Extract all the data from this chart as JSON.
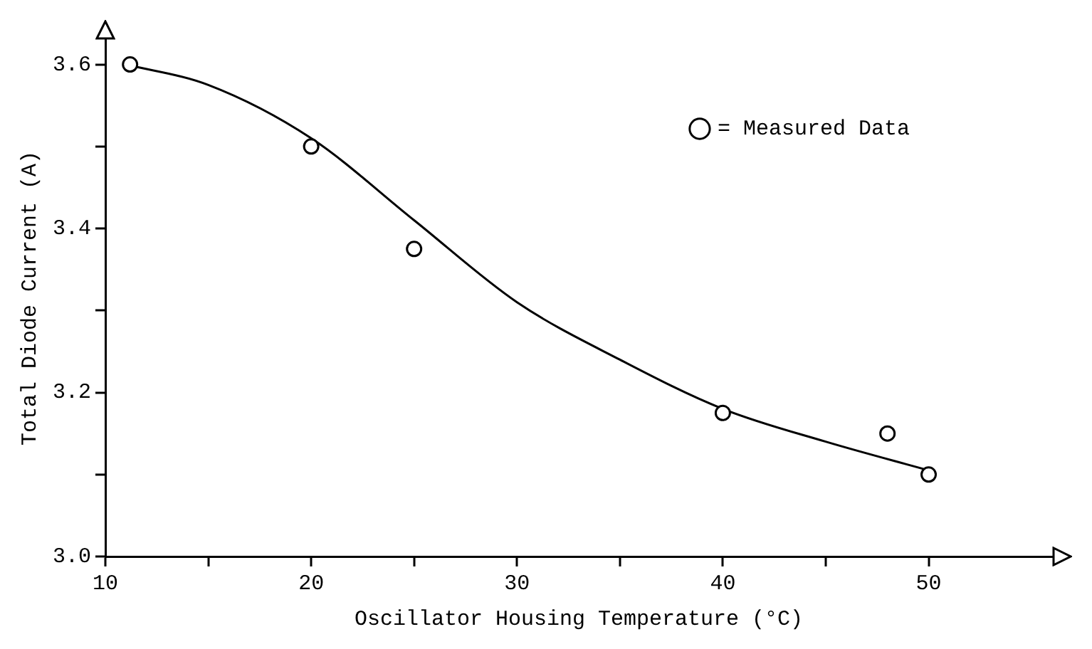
{
  "chart_data": {
    "type": "scatter",
    "xlabel": "Oscillator Housing Temperature (°C)",
    "ylabel": "Total Diode Current (A)",
    "xlim": [
      10,
      56
    ],
    "xticks": [
      10,
      {
        "value": 15,
        "label": null
      },
      20,
      {
        "value": 25,
        "label": null
      },
      30,
      {
        "value": 35,
        "label": null
      },
      40,
      {
        "value": 45,
        "label": null
      },
      50
    ],
    "ylim": [
      3.0,
      3.63
    ],
    "yticks": [
      {
        "value": 3.0,
        "label": "3.0"
      },
      {
        "value": 3.1,
        "label": null
      },
      3.2,
      {
        "value": 3.3,
        "label": null
      },
      3.4,
      {
        "value": 3.5,
        "label": null
      },
      3.6
    ],
    "grid": false,
    "legend": "top right",
    "series": [
      {
        "name": "= Measured Data",
        "type": "scatter",
        "marker": "circle",
        "color": "#000000",
        "x": [
          11.2,
          20,
          25,
          40,
          48,
          50
        ],
        "values": [
          3.6,
          3.5,
          3.375,
          3.175,
          3.15,
          3.1
        ]
      },
      {
        "type": "line",
        "marker": "none",
        "line_style": "solid",
        "color": "#000000",
        "x": [
          11,
          15,
          20,
          25,
          30,
          35,
          40,
          45,
          50
        ],
        "values": [
          3.6,
          3.575,
          3.51,
          3.41,
          3.31,
          3.24,
          3.18,
          3.14,
          3.105
        ]
      }
    ]
  }
}
